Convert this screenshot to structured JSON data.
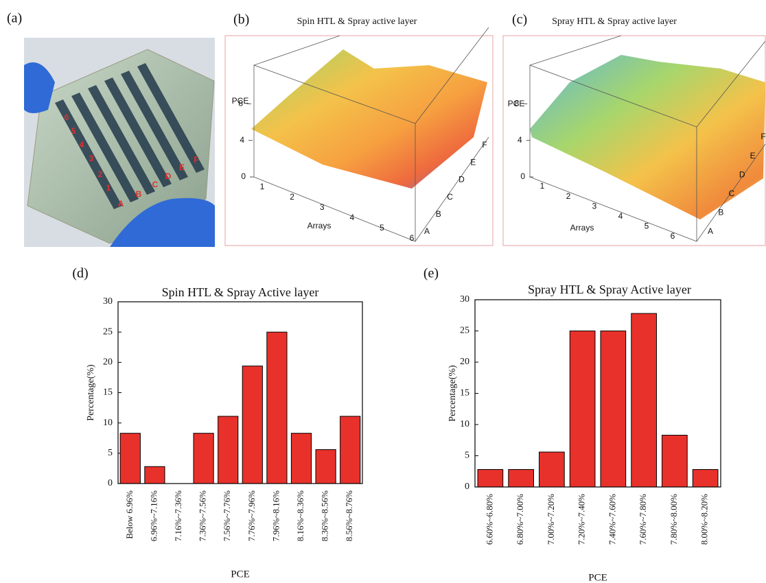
{
  "photo": {
    "panel_label": "(a)",
    "labels": [
      "6",
      "5",
      "4",
      "3",
      "2",
      "1",
      "A",
      "B",
      "C",
      "D",
      "E",
      "F"
    ]
  },
  "chart_data": [
    {
      "type": "surface",
      "panel_label": "(b)",
      "title": "Spin HTL & Spray active layer",
      "zlabel": "PCE",
      "xlabel": "Arrays",
      "xcategories": [
        "1",
        "2",
        "3",
        "4",
        "5",
        "6"
      ],
      "ycategories": [
        "A",
        "B",
        "C",
        "D",
        "E",
        "F"
      ],
      "zlim": [
        0,
        12
      ],
      "zticks": [
        0,
        4,
        8
      ]
    },
    {
      "type": "surface",
      "panel_label": "(c)",
      "title": "Spray HTL & Spray active layer",
      "zlabel": "PCE",
      "xlabel": "Arrays",
      "xcategories": [
        "1",
        "2",
        "3",
        "4",
        "5",
        "6"
      ],
      "ycategories": [
        "A",
        "B",
        "C",
        "D",
        "E",
        "F"
      ],
      "zlim": [
        0,
        12
      ],
      "zticks": [
        0,
        4,
        8
      ]
    },
    {
      "type": "bar",
      "panel_label": "(d)",
      "title": "Spin HTL & Spray Active layer",
      "xlabel": "PCE",
      "ylabel": "Percentage(%)",
      "categories": [
        "Below 6.96%",
        "6.96%~7.16%",
        "7.16%~7.36%",
        "7.36%~7.56%",
        "7.56%~7.76%",
        "7.76%~7.96%",
        "7.96%~8.16%",
        "8.16%~8.36%",
        "8.36%~8.56%",
        "8.56%~8.76%"
      ],
      "values": [
        8.3,
        2.8,
        0,
        8.3,
        11.1,
        19.4,
        25,
        8.3,
        5.6,
        11.1
      ],
      "color": "#e8312b",
      "ylim": [
        0,
        30
      ],
      "yticks": [
        0,
        5,
        10,
        15,
        20,
        25,
        30
      ]
    },
    {
      "type": "bar",
      "panel_label": "(e)",
      "title": "Spray HTL & Spray Active layer",
      "xlabel": "PCE",
      "ylabel": "Percentage(%)",
      "categories": [
        "6.60%~6.80%",
        "6.80%~7.00%",
        "7.00%~7.20%",
        "7.20%~7.40%",
        "7.40%~7.60%",
        "7.60%~7.80%",
        "7.80%~8.00%",
        "8.00%~8.20%"
      ],
      "values": [
        2.8,
        2.8,
        5.6,
        25,
        25,
        27.8,
        8.3,
        2.8
      ],
      "color": "#e8312b",
      "ylim": [
        0,
        30
      ],
      "yticks": [
        0,
        5,
        10,
        15,
        20,
        25,
        30
      ]
    }
  ]
}
